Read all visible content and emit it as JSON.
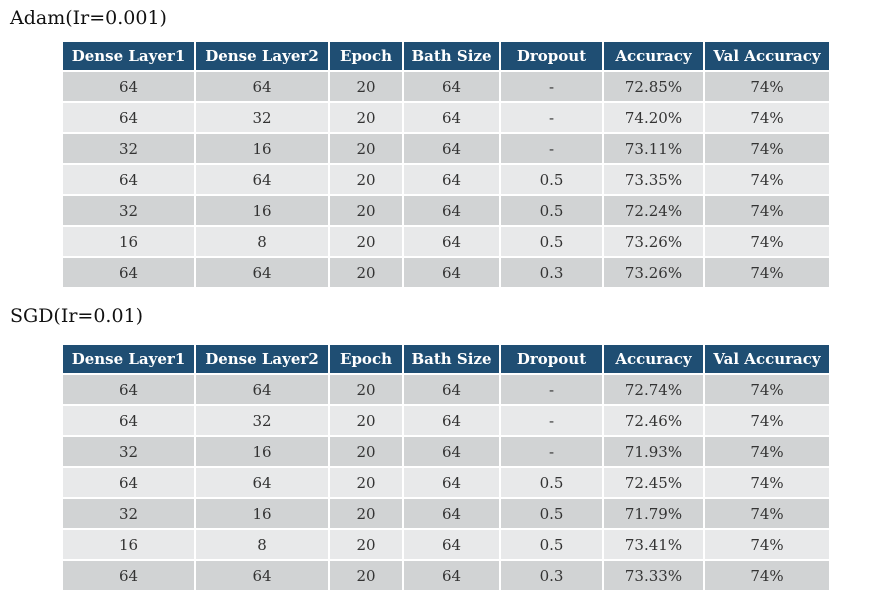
{
  "headers": [
    "Dense Layer1",
    "Dense Layer2",
    "Epoch",
    "Bath Size",
    "Dropout",
    "Accuracy",
    "Val Accuracy"
  ],
  "adam": {
    "title": "Adam(Ir=0.001)",
    "rows": [
      [
        "64",
        "64",
        "20",
        "64",
        "-",
        "72.85%",
        "74%"
      ],
      [
        "64",
        "32",
        "20",
        "64",
        "-",
        "74.20%",
        "74%"
      ],
      [
        "32",
        "16",
        "20",
        "64",
        "-",
        "73.11%",
        "74%"
      ],
      [
        "64",
        "64",
        "20",
        "64",
        "0.5",
        "73.35%",
        "74%"
      ],
      [
        "32",
        "16",
        "20",
        "64",
        "0.5",
        "72.24%",
        "74%"
      ],
      [
        "16",
        "8",
        "20",
        "64",
        "0.5",
        "73.26%",
        "74%"
      ],
      [
        "64",
        "64",
        "20",
        "64",
        "0.3",
        "73.26%",
        "74%"
      ]
    ]
  },
  "sgd": {
    "title": "SGD(Ir=0.01)",
    "rows": [
      [
        "64",
        "64",
        "20",
        "64",
        "-",
        "72.74%",
        "74%"
      ],
      [
        "64",
        "32",
        "20",
        "64",
        "-",
        "72.46%",
        "74%"
      ],
      [
        "32",
        "16",
        "20",
        "64",
        "-",
        "71.93%",
        "74%"
      ],
      [
        "64",
        "64",
        "20",
        "64",
        "0.5",
        "72.45%",
        "74%"
      ],
      [
        "32",
        "16",
        "20",
        "64",
        "0.5",
        "71.79%",
        "74%"
      ],
      [
        "16",
        "8",
        "20",
        "64",
        "0.5",
        "73.41%",
        "74%"
      ],
      [
        "64",
        "64",
        "20",
        "64",
        "0.3",
        "73.33%",
        "74%"
      ]
    ]
  }
}
